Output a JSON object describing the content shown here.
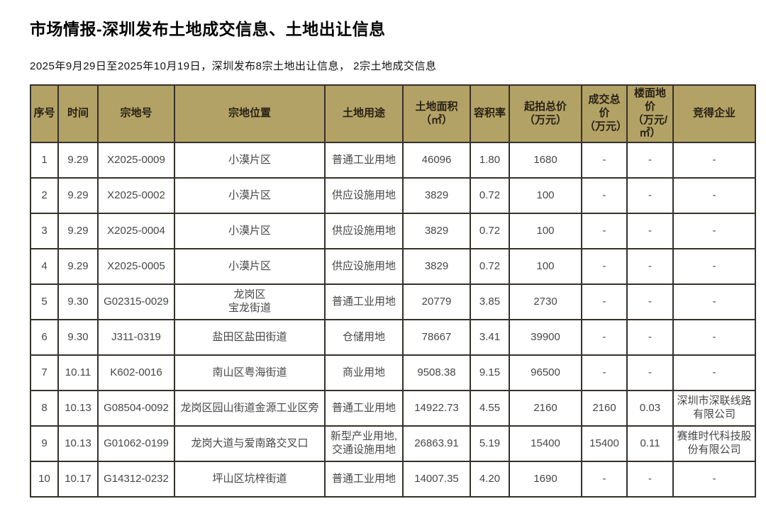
{
  "title": "市场情报-深圳发布土地成交信息、土地出让信息",
  "subtitle": "2025年9月29日至2025年10月19日，深圳发布8宗土地出让信息， 2宗土地成交信息",
  "colors": {
    "header_bg": "#b3a266",
    "border": "#35312a",
    "header_text": "#272115",
    "body_text": "#474747"
  },
  "table": {
    "columns": [
      "序号",
      "时间",
      "宗地号",
      "宗地位置",
      "土地用途",
      "土地面积\n（㎡）",
      "容积率",
      "起拍总价\n（万元）",
      "成交总价\n（万元）",
      "楼面地价\n（万元/㎡）",
      "竞得企业"
    ],
    "rows": [
      [
        "1",
        "9.29",
        "X2025-0009",
        "小漠片区",
        "普通工业用地",
        "46096",
        "1.80",
        "1680",
        "-",
        "-",
        "-"
      ],
      [
        "2",
        "9.29",
        "X2025-0002",
        "小漠片区",
        "供应设施用地",
        "3829",
        "0.72",
        "100",
        "-",
        "-",
        "-"
      ],
      [
        "3",
        "9.29",
        "X2025-0004",
        "小漠片区",
        "供应设施用地",
        "3829",
        "0.72",
        "100",
        "-",
        "-",
        "-"
      ],
      [
        "4",
        "9.29",
        "X2025-0005",
        "小漠片区",
        "供应设施用地",
        "3829",
        "0.72",
        "100",
        "-",
        "-",
        "-"
      ],
      [
        "5",
        "9.30",
        "G02315-0029",
        "龙岗区\n宝龙街道",
        "普通工业用地",
        "20779",
        "3.85",
        "2730",
        "-",
        "-",
        "-"
      ],
      [
        "6",
        "9.30",
        "J311-0319",
        "盐田区盐田街道",
        "仓储用地",
        "78667",
        "3.41",
        "39900",
        "-",
        "-",
        "-"
      ],
      [
        "7",
        "10.11",
        "K602-0016",
        "南山区粤海街道",
        "商业用地",
        "9508.38",
        "9.15",
        "96500",
        "-",
        "-",
        "-"
      ],
      [
        "8",
        "10.13",
        "G08504-0092",
        "龙岗区园山街道金源工业区旁",
        "普通工业用地",
        "14922.73",
        "4.55",
        "2160",
        "2160",
        "0.03",
        "深圳市深联线路有限公司"
      ],
      [
        "9",
        "10.13",
        "G01062-0199",
        "龙岗大道与爱南路交叉口",
        "新型产业用地,\n交通设施用地",
        "26863.91",
        "5.19",
        "15400",
        "15400",
        "0.11",
        "赛维时代科技股份有限公司"
      ],
      [
        "10",
        "10.17",
        "G14312-0232",
        "坪山区坑梓街道",
        "普通工业用地",
        "14007.35",
        "4.20",
        "1690",
        "-",
        "-",
        "-"
      ]
    ]
  }
}
